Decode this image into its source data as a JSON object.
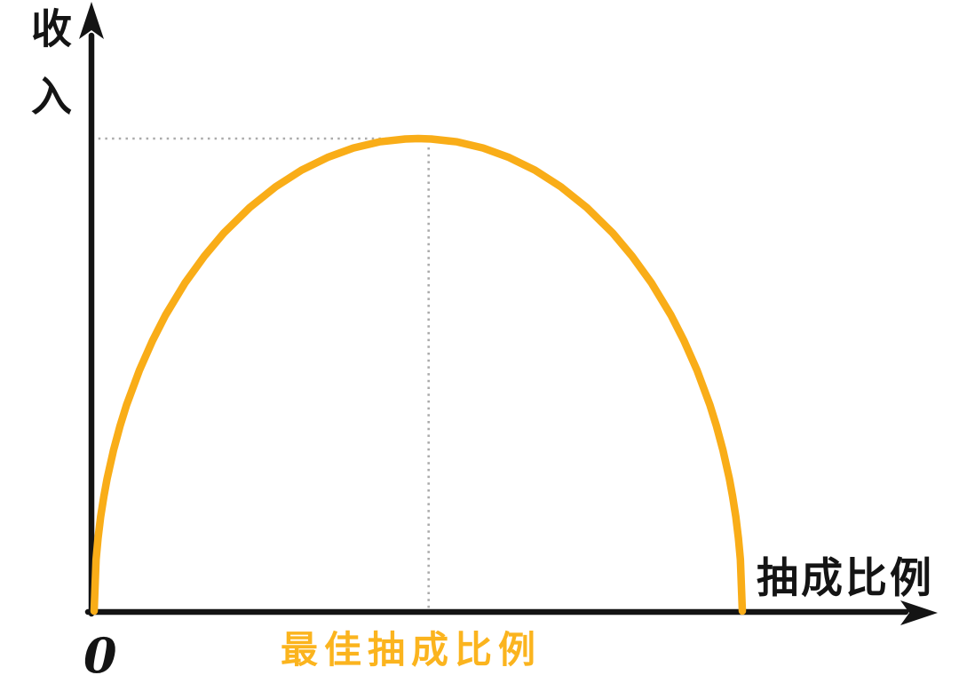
{
  "colors": {
    "background": "#FFFFFF",
    "axis": "#141414",
    "guide": "#ABABAB",
    "curve": "#F9AD18",
    "accent_text": "#FBB41E"
  },
  "chart_data": {
    "type": "line",
    "title": "",
    "xlabel": "抽成比例",
    "ylabel": "收入",
    "origin_label": "0",
    "legend_position": "none",
    "grid": "off",
    "ticks": "none (only 0 at origin)",
    "axis_ranges": {
      "x_normalized": [
        0,
        1
      ],
      "y_normalized": [
        0,
        1
      ]
    },
    "series": [
      {
        "name": "income-vs-commission-curve",
        "color": "#F9AD18",
        "shape": "inverted-U semi-ellipse: income is 0 at commission 0, peaks at the optimal commission ratio, falls back to 0 at maximum commission",
        "x_normalized": [
          0,
          0.003,
          0.006,
          0.01,
          0.015,
          0.02,
          0.03,
          0.04,
          0.05,
          0.07,
          0.09,
          0.11,
          0.14,
          0.17,
          0.2,
          0.24,
          0.28,
          0.32,
          0.36,
          0.4,
          0.44,
          0.48,
          0.5,
          0.52,
          0.56,
          0.6,
          0.64,
          0.68,
          0.72,
          0.76,
          0.8,
          0.83,
          0.86,
          0.89,
          0.91,
          0.93,
          0.95,
          0.96,
          0.97,
          0.98,
          0.985,
          0.99,
          0.994,
          0.997,
          1
        ],
        "y_normalized": [
          0,
          0.109,
          0.154,
          0.199,
          0.243,
          0.28,
          0.341,
          0.392,
          0.436,
          0.51,
          0.572,
          0.626,
          0.694,
          0.751,
          0.8,
          0.854,
          0.898,
          0.933,
          0.96,
          0.98,
          0.993,
          0.999,
          1,
          0.999,
          0.993,
          0.98,
          0.96,
          0.933,
          0.898,
          0.854,
          0.8,
          0.751,
          0.694,
          0.626,
          0.572,
          0.51,
          0.436,
          0.392,
          0.341,
          0.28,
          0.243,
          0.199,
          0.154,
          0.109,
          0
        ]
      }
    ],
    "guides": [
      {
        "type": "dashed-vertical",
        "x_normalized": 0.516,
        "from": "x-axis",
        "to": "curve peak"
      },
      {
        "type": "dashed-horizontal",
        "y_normalized": 1.0,
        "from": "y-axis",
        "to": "curve peak"
      }
    ],
    "annotations": [
      {
        "text": "最佳抽成比例",
        "color": "#FBB41E",
        "x_normalized": 0.516,
        "position": "below x-axis, under the peak"
      }
    ]
  }
}
